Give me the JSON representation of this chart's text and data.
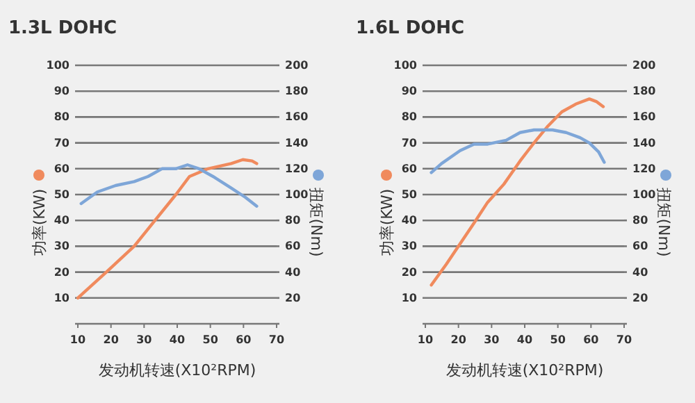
{
  "chart_data": [
    {
      "type": "line",
      "title": "1.3L DOHC",
      "xlabel": "发动机转速(X10²RPM)",
      "ylabel": "功率(KW)",
      "y2label": "扭矩(Nm)",
      "grid": "y",
      "xlim": [
        10,
        70
      ],
      "xticks": [
        10,
        20,
        30,
        40,
        50,
        60,
        70
      ],
      "ylim": [
        0,
        100
      ],
      "yticks": [
        {
          "value": 0,
          "label": null
        },
        10,
        20,
        30,
        40,
        50,
        60,
        70,
        80,
        90,
        100
      ],
      "y2lim": [
        0,
        200
      ],
      "y2ticks": [
        {
          "value": 0,
          "label": null
        },
        20,
        40,
        60,
        80,
        100,
        120,
        140,
        160,
        180,
        200
      ],
      "series": [
        {
          "color": "#f08a5d",
          "x": [
            10,
            18.6,
            27,
            33.3,
            39.6,
            43.7,
            49.3,
            56.3,
            59.8,
            62.6,
            64
          ],
          "values": [
            10,
            20,
            30,
            40,
            50,
            57,
            60,
            62,
            63.5,
            63,
            62
          ]
        },
        {
          "color": "#7ea6d8",
          "axis": "y2",
          "x": [
            11,
            15.9,
            21.4,
            27,
            31.2,
            35.4,
            39.6,
            43.1,
            46.6,
            50.8,
            56.3,
            60.5,
            64
          ],
          "values": [
            93,
            102,
            107,
            110,
            114,
            120,
            120,
            123,
            120,
            114,
            105,
            98,
            91
          ]
        }
      ]
    },
    {
      "type": "line",
      "title": "1.6L DOHC",
      "xlabel": "发动机转速(X10²RPM)",
      "ylabel": "功率(KW)",
      "y2label": "扭矩(Nm)",
      "grid": "y",
      "xlim": [
        10,
        70
      ],
      "xticks": [
        10,
        20,
        30,
        40,
        50,
        60,
        70
      ],
      "ylim": [
        0,
        100
      ],
      "yticks": [
        {
          "value": 0,
          "label": null
        },
        10,
        20,
        30,
        40,
        50,
        60,
        70,
        80,
        90,
        100
      ],
      "y2lim": [
        0,
        200
      ],
      "y2ticks": [
        {
          "value": 0,
          "label": null
        },
        20,
        40,
        60,
        80,
        100,
        120,
        140,
        160,
        180,
        200
      ],
      "series": [
        {
          "color": "#f08a5d",
          "x": [
            11.8,
            16.3,
            20.5,
            24.7,
            28.8,
            33.7,
            38.6,
            42.8,
            47,
            51.2,
            55.4,
            59.5,
            61.6,
            63.7
          ],
          "values": [
            15,
            23,
            31,
            39,
            47,
            54,
            63,
            70,
            76.5,
            82,
            85,
            87,
            86,
            84
          ]
        },
        {
          "color": "#7ea6d8",
          "axis": "y2",
          "x": [
            11.8,
            14.9,
            20.5,
            24.7,
            28.8,
            34.4,
            38.6,
            42.8,
            48.4,
            52.5,
            56.7,
            59.5,
            62.3,
            64
          ],
          "values": [
            117,
            124,
            134,
            139,
            139,
            142,
            148,
            150,
            150,
            148,
            144,
            140,
            133,
            125
          ]
        }
      ]
    }
  ]
}
